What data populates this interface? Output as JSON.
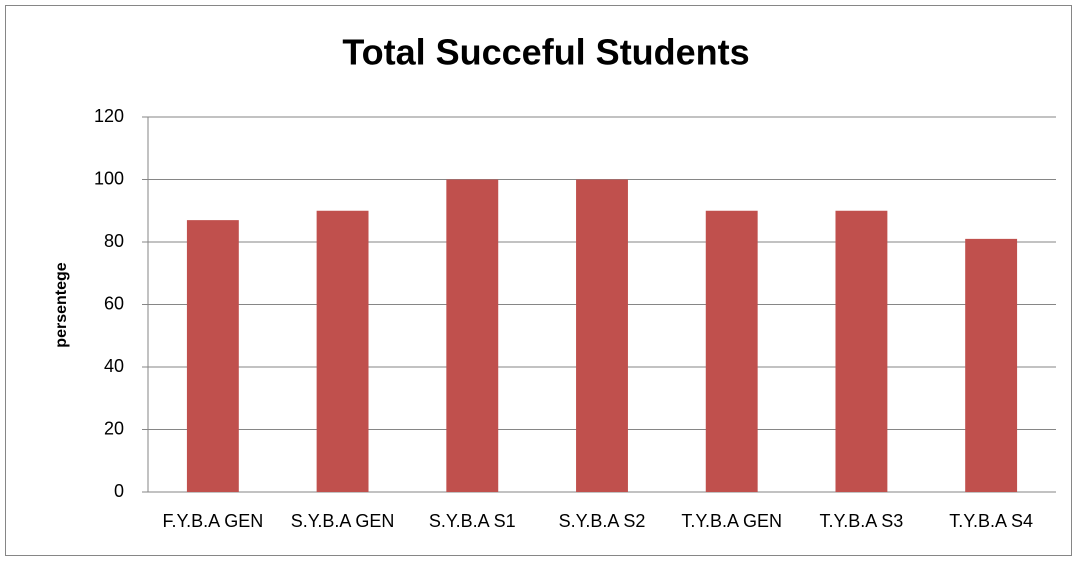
{
  "chart_data": {
    "type": "bar",
    "title": "Total Succeful Students",
    "y_label": "persentege",
    "categories": [
      "F.Y.B.A GEN",
      "S.Y.B.A GEN",
      "S.Y.B.A S1",
      "S.Y.B.A S2",
      "T.Y.B.A GEN",
      "T.Y.B.A S3",
      "T.Y.B.A S4"
    ],
    "values": [
      87,
      90,
      100,
      100,
      90,
      90,
      81
    ],
    "color": "#c0504d",
    "ylim": [
      0,
      120
    ],
    "yticks": [
      0,
      20,
      40,
      60,
      80,
      100,
      120
    ],
    "grid": true
  }
}
